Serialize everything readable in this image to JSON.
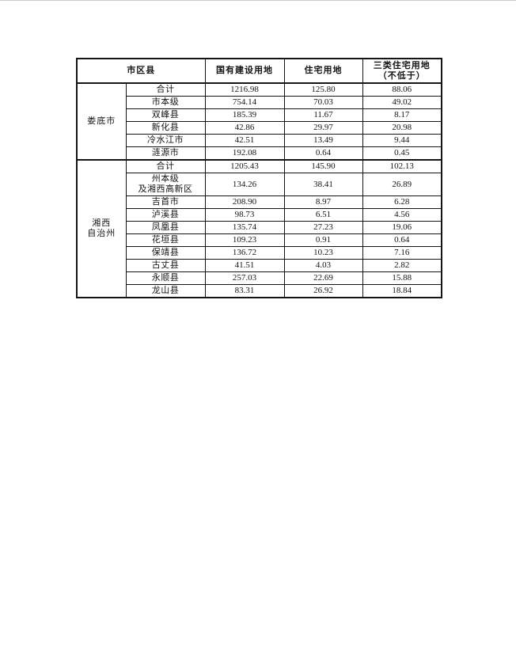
{
  "table": {
    "header": {
      "region": "市区县",
      "construction": "国有建设用地",
      "residential": "住宅用地",
      "three_types": "三类住宅用地\n（不低于）"
    },
    "groups": [
      {
        "name": "娄底市",
        "rows": [
          {
            "label": "合计",
            "values": [
              "1216.98",
              "125.80",
              "88.06"
            ]
          },
          {
            "label": "市本级",
            "values": [
              "754.14",
              "70.03",
              "49.02"
            ]
          },
          {
            "label": "双峰县",
            "values": [
              "185.39",
              "11.67",
              "8.17"
            ]
          },
          {
            "label": "新化县",
            "values": [
              "42.86",
              "29.97",
              "20.98"
            ]
          },
          {
            "label": "冷水江市",
            "values": [
              "42.51",
              "13.49",
              "9.44"
            ]
          },
          {
            "label": "涟源市",
            "values": [
              "192.08",
              "0.64",
              "0.45"
            ]
          }
        ]
      },
      {
        "name": "湘西\n自治州",
        "rows": [
          {
            "label": "合计",
            "values": [
              "1205.43",
              "145.90",
              "102.13"
            ]
          },
          {
            "label": "州本级\n及湘西高新区",
            "values": [
              "134.26",
              "38.41",
              "26.89"
            ]
          },
          {
            "label": "吉首市",
            "values": [
              "208.90",
              "8.97",
              "6.28"
            ]
          },
          {
            "label": "泸溪县",
            "values": [
              "98.73",
              "6.51",
              "4.56"
            ]
          },
          {
            "label": "凤凰县",
            "values": [
              "135.74",
              "27.23",
              "19.06"
            ]
          },
          {
            "label": "花垣县",
            "values": [
              "109.23",
              "0.91",
              "0.64"
            ]
          },
          {
            "label": "保靖县",
            "values": [
              "136.72",
              "10.23",
              "7.16"
            ]
          },
          {
            "label": "古丈县",
            "values": [
              "41.51",
              "4.03",
              "2.82"
            ]
          },
          {
            "label": "永顺县",
            "values": [
              "257.03",
              "22.69",
              "15.88"
            ]
          },
          {
            "label": "龙山县",
            "values": [
              "83.31",
              "26.92",
              "18.84"
            ]
          }
        ]
      }
    ]
  }
}
